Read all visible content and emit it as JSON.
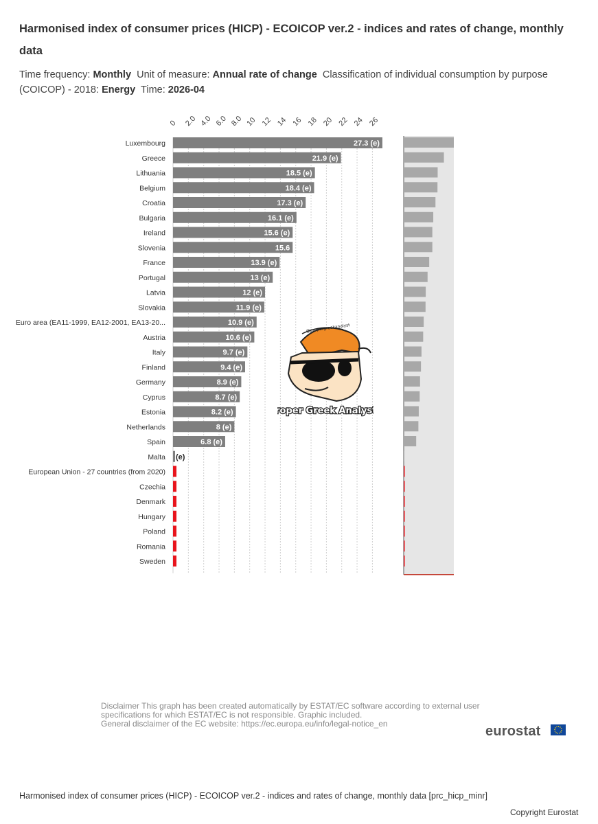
{
  "title": "Harmonised index of consumer prices (HICP) - ECOICOP ver.2 - indices and rates of change, monthly data",
  "subtitle": {
    "freq_label": "Time frequency:",
    "freq_value": "Monthly",
    "unit_label": "Unit of measure:",
    "unit_value": "Annual rate of change",
    "class_label": "Classification of individual consumption by purpose (COICOP) - 2018:",
    "class_value": "Energy",
    "time_label": "Time:",
    "time_value": "2026-04"
  },
  "chart_data": {
    "type": "bar",
    "orientation": "horizontal",
    "xlim": [
      0,
      27.3
    ],
    "x_ticks": [
      "0",
      "2.0",
      "4.0",
      "6.0",
      "8.0",
      "10",
      "12",
      "14",
      "16",
      "18",
      "20",
      "22",
      "24",
      "26"
    ],
    "grid": true,
    "bar_color": "#7f7f7f",
    "missing_color": "#e8141c",
    "categories": [
      "Luxembourg",
      "Greece",
      "Lithuania",
      "Belgium",
      "Croatia",
      "Bulgaria",
      "Ireland",
      "Slovenia",
      "France",
      "Portugal",
      "Latvia",
      "Slovakia",
      "Euro area (EA11-1999, EA12-2001, EA13-20...",
      "Austria",
      "Italy",
      "Finland",
      "Germany",
      "Cyprus",
      "Estonia",
      "Netherlands",
      "Spain",
      "Malta",
      "European Union - 27 countries (from 2020)",
      "Czechia",
      "Denmark",
      "Hungary",
      "Poland",
      "Romania",
      "Sweden"
    ],
    "values": [
      27.3,
      21.9,
      18.5,
      18.4,
      17.3,
      16.1,
      15.6,
      15.6,
      13.9,
      13,
      12,
      11.9,
      10.9,
      10.6,
      9.7,
      9.4,
      8.9,
      8.7,
      8.2,
      8,
      6.8,
      0.2,
      null,
      null,
      null,
      null,
      null,
      null,
      null
    ],
    "labels": [
      "27.3 (e)",
      "21.9 (e)",
      "18.5 (e)",
      "18.4 (e)",
      "17.3 (e)",
      "16.1 (e)",
      "15.6 (e)",
      "15.6",
      "13.9 (e)",
      "13 (e)",
      "12 (e)",
      "11.9 (e)",
      "10.9 (e)",
      "10.6 (e)",
      "9.7 (e)",
      "9.4 (e)",
      "8.9 (e)",
      "8.7 (e)",
      "8.2 (e)",
      "8 (e)",
      "6.8 (e)",
      "(e)",
      "",
      "",
      "",
      "",
      "",
      "",
      ""
    ]
  },
  "sticker": {
    "text": "Proper Greek Analyst",
    "band_text": "@propergreekanalyst"
  },
  "disclaimer": {
    "line1": "Disclaimer This graph has been created automatically by ESTAT/EC software according to external user",
    "line2": "specifications for which ESTAT/EC is not responsible. Graphic included.",
    "line3": "General disclaimer of the EC website: https://ec.europa.eu/info/legal-notice_en"
  },
  "logo": "eurostat",
  "footer": {
    "source": "Harmonised index of consumer prices (HICP) - ECOICOP ver.2 - indices and rates of change, monthly data [prc_hicp_minr]",
    "copyright": "Copyright Eurostat"
  }
}
